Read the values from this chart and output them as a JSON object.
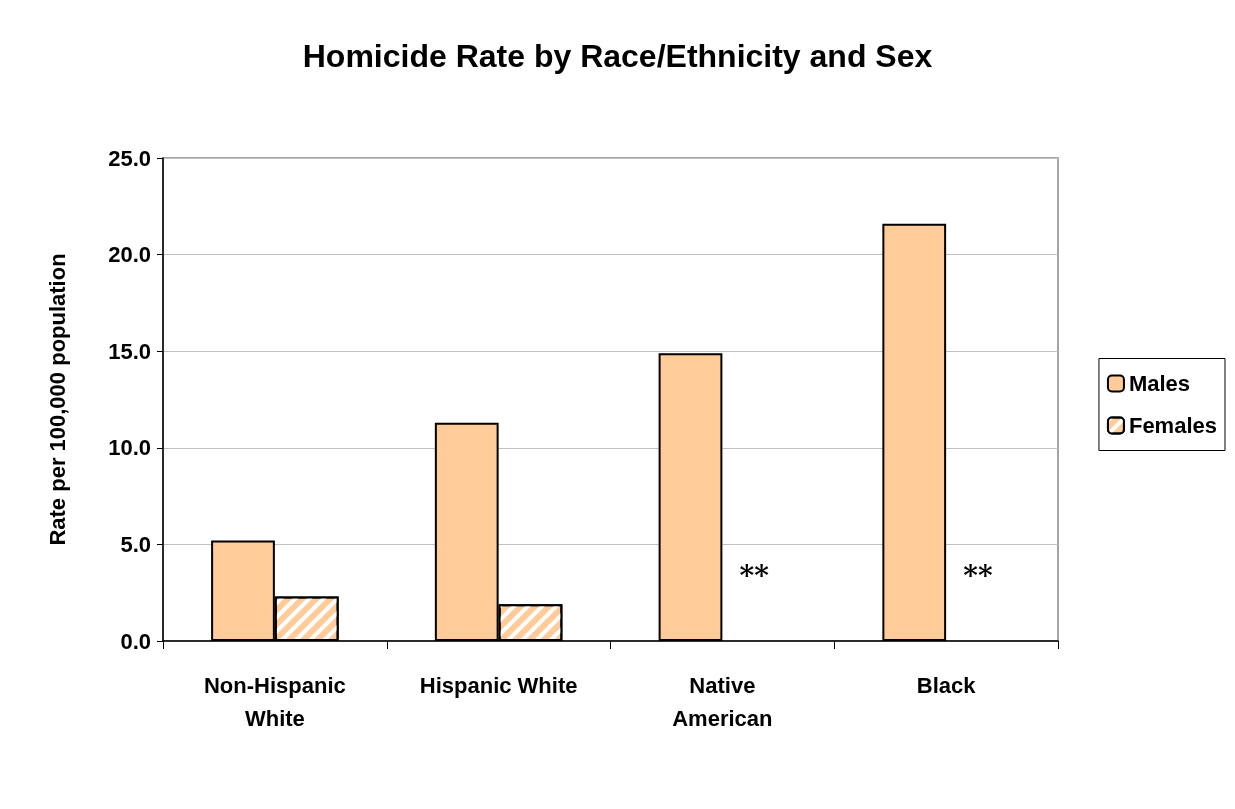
{
  "chart_data": {
    "type": "bar",
    "title": "Homicide Rate by Race/Ethnicity and Sex",
    "ylabel": "Rate per 100,000 population",
    "categories": [
      "Non-Hispanic\nWhite",
      "Hispanic White",
      "Native\nAmerican",
      "Black"
    ],
    "series": [
      {
        "name": "Males",
        "color": "#ffcc99",
        "values": [
          5.2,
          11.3,
          14.9,
          21.6
        ]
      },
      {
        "name": "Females",
        "color": "#ffcc99",
        "values": [
          2.3,
          1.9,
          null,
          null
        ]
      }
    ],
    "annotations": [
      {
        "text": "**",
        "x": "Native\nAmerican",
        "y": 3.4
      },
      {
        "text": "**",
        "x": "Black",
        "y": 3.4
      }
    ],
    "ylim": [
      0,
      25
    ],
    "yticks": [
      {
        "value": 0,
        "label": "0.0"
      },
      {
        "value": 5,
        "label": "5.0"
      },
      {
        "value": 10,
        "label": "10.0"
      },
      {
        "value": 15,
        "label": "15.0"
      },
      {
        "value": 20,
        "label": "20.0"
      },
      {
        "value": 25,
        "label": "25.0"
      }
    ],
    "grid": "y",
    "legend": "right"
  }
}
